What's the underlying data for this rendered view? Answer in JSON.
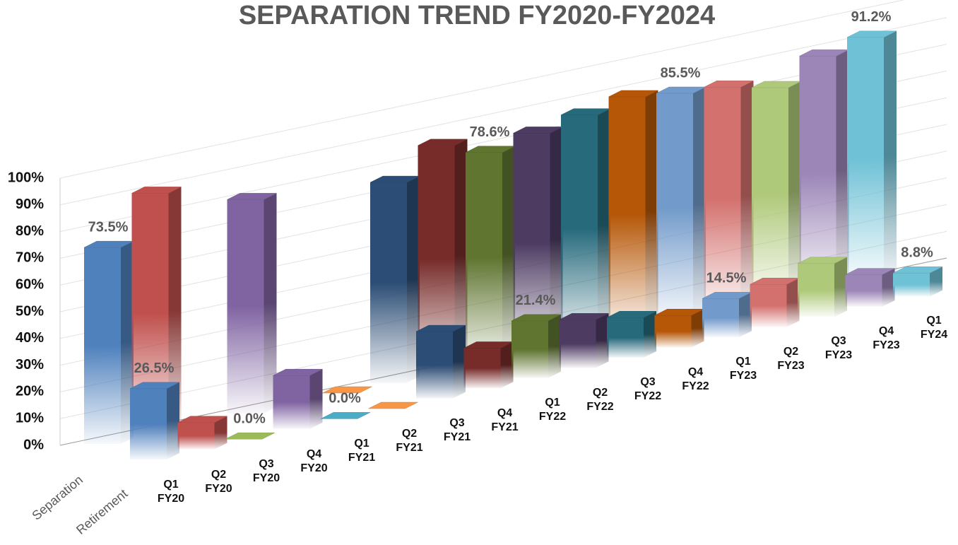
{
  "chart_data": {
    "type": "bar3d",
    "title": "SEPARATION TREND FY2020-FY2024",
    "categories": [
      "Q1 FY20",
      "Q2 FY20",
      "Q3 FY20",
      "Q4 FY20",
      "Q1 FY21",
      "Q2 FY21",
      "Q3 FY21",
      "Q4 FY21",
      "Q1 FY22",
      "Q2 FY22",
      "Q3 FY22",
      "Q4 FY22",
      "Q1 FY23",
      "Q2 FY23",
      "Q3 FY23",
      "Q4 FY23",
      "Q1 FY24"
    ],
    "colors": [
      "#4f81bd",
      "#c0504d",
      "#9bbb59",
      "#8064a2",
      "#4bacc6",
      "#f79646",
      "#2c4d75",
      "#772c2a",
      "#5f7530",
      "#4d3b62",
      "#276a7c",
      "#b65708",
      "#729aca",
      "#d3716e",
      "#afc97a",
      "#9c86b8",
      "#6fc1d6"
    ],
    "series": [
      {
        "name": "Separation",
        "values": [
          73.5,
          90,
          null,
          80,
          null,
          0,
          75,
          85,
          78.6,
          82,
          85,
          88,
          85.5,
          84,
          80,
          88,
          91.2
        ],
        "value_labels": [
          "73.5%",
          null,
          null,
          null,
          null,
          null,
          null,
          null,
          "78.6%",
          null,
          null,
          null,
          "85.5%",
          null,
          null,
          null,
          "91.2%"
        ]
      },
      {
        "name": "Retirement",
        "values": [
          26.5,
          10,
          0,
          20,
          0,
          0,
          25,
          15,
          21.4,
          18,
          15,
          12,
          14.5,
          16,
          20,
          12,
          8.8
        ],
        "value_labels": [
          "26.5%",
          null,
          "0.0%",
          null,
          "0.0%",
          null,
          null,
          null,
          "21.4%",
          null,
          null,
          null,
          "14.5%",
          null,
          null,
          null,
          "8.8%"
        ]
      }
    ],
    "ylim": [
      0,
      100
    ],
    "yticks": [
      {
        "value": 0,
        "label": "0%"
      },
      {
        "value": 10,
        "label": "10%"
      },
      {
        "value": 20,
        "label": "20%"
      },
      {
        "value": 30,
        "label": "30%"
      },
      {
        "value": 40,
        "label": "40%"
      },
      {
        "value": 50,
        "label": "50%"
      },
      {
        "value": 60,
        "label": "60%"
      },
      {
        "value": 70,
        "label": "70%"
      },
      {
        "value": 80,
        "label": "80%"
      },
      {
        "value": 90,
        "label": "90%"
      },
      {
        "value": 100,
        "label": "100%"
      }
    ],
    "grid": true
  }
}
